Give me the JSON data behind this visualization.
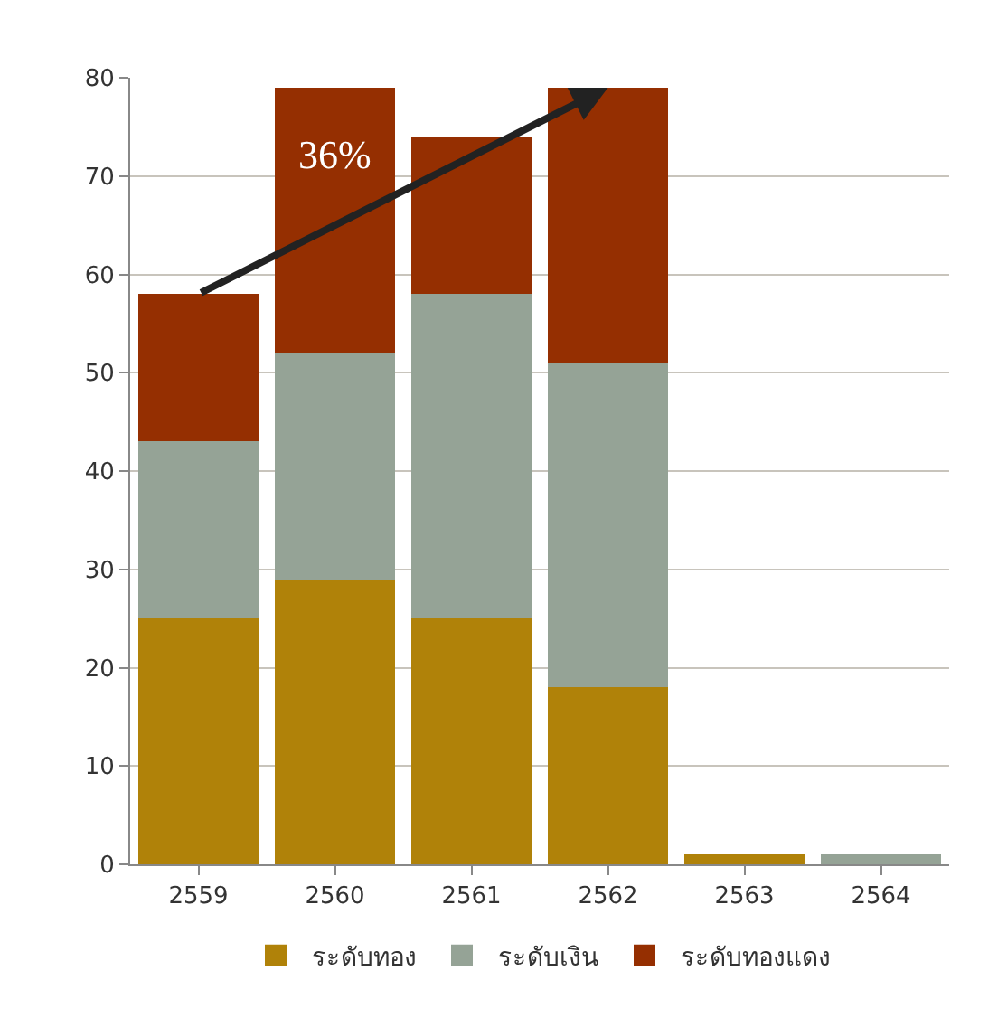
{
  "chart_data": {
    "type": "bar",
    "stacked": true,
    "categories": [
      "2559",
      "2560",
      "2561",
      "2562",
      "2563",
      "2564"
    ],
    "series": [
      {
        "name": "ระดับทอง",
        "color": "#b08209",
        "values": [
          25,
          29,
          25,
          18,
          1,
          0
        ]
      },
      {
        "name": "ระดับเงิน",
        "color": "#95a396",
        "values": [
          18,
          23,
          33,
          33,
          0,
          1
        ]
      },
      {
        "name": "ระดับทองแดง",
        "color": "#952f01",
        "values": [
          15,
          27,
          16,
          28,
          0,
          0
        ]
      }
    ],
    "ylim": [
      0,
      80
    ],
    "yticks": [
      0,
      10,
      20,
      30,
      40,
      50,
      60,
      70,
      80
    ],
    "grid": "y",
    "legend": "bottom",
    "annotations": [
      "36%"
    ]
  }
}
